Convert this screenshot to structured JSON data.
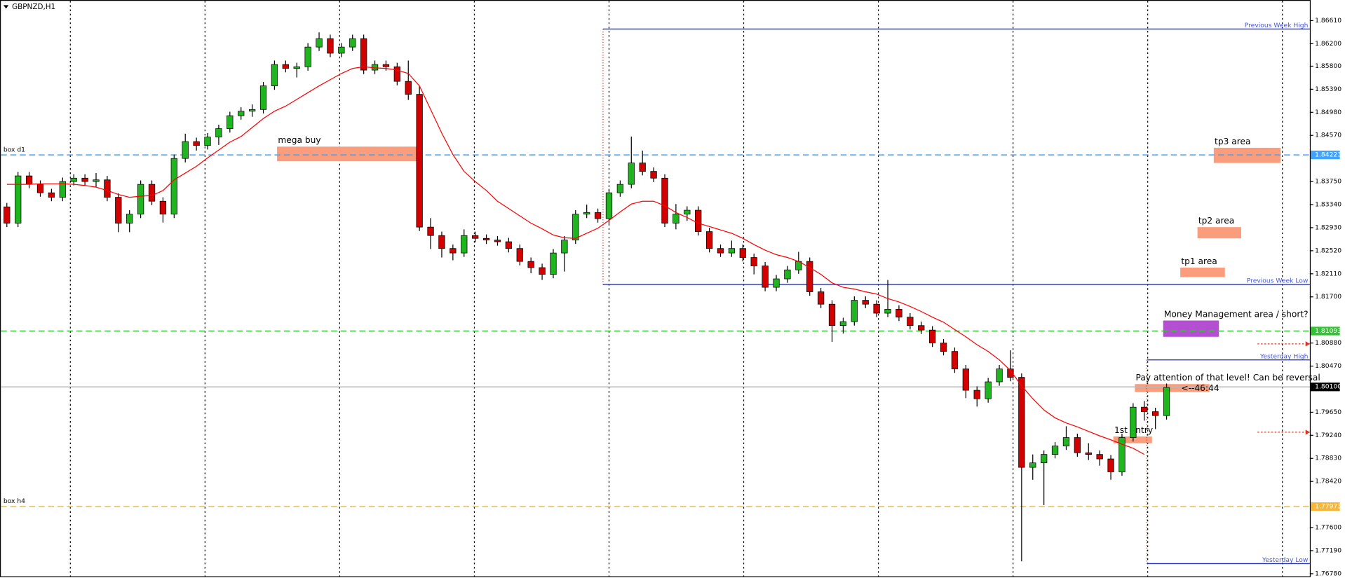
{
  "chart_data": {
    "type": "candlestick",
    "title": "GBPNZD,H1",
    "up_color": "#1fb51f",
    "down_color": "#d40000",
    "open": [
      1.833,
      1.8301,
      1.8385,
      1.837,
      1.8355,
      1.8347,
      1.8375,
      1.8381,
      1.8375,
      1.8378,
      1.8347,
      1.8301,
      1.8317,
      1.837,
      1.834,
      1.8317,
      1.8416,
      1.8446,
      1.8439,
      1.8454,
      1.8469,
      1.8492,
      1.85,
      1.8503,
      1.8545,
      1.8583,
      1.8576,
      1.8579,
      1.8614,
      1.8629,
      1.8603,
      1.8614,
      1.8629,
      1.8573,
      1.8583,
      1.8579,
      1.8553,
      1.853,
      1.8294,
      1.8279,
      1.8256,
      1.8248,
      1.8279,
      1.8274,
      1.8271,
      1.8268,
      1.8256,
      1.8233,
      1.8222,
      1.821,
      1.8248,
      1.8271,
      1.8317,
      1.832,
      1.8309,
      1.8355,
      1.837,
      1.8408,
      1.8393,
      1.8381,
      1.8301,
      1.8317,
      1.8324,
      1.8286,
      1.8256,
      1.8248,
      1.8256,
      1.824,
      1.8225,
      1.8187,
      1.8202,
      1.8218,
      1.8233,
      1.8179,
      1.8157,
      1.8119,
      1.8126,
      1.8164,
      1.8157,
      1.8141,
      1.8148,
      1.8134,
      1.8119,
      1.8111,
      1.8088,
      1.8073,
      1.8042,
      1.8004,
      1.7989,
      1.8019,
      1.8042,
      1.8027,
      1.7867,
      1.7875,
      1.789,
      1.7905,
      1.792,
      1.7893,
      1.789,
      1.7882,
      1.7859,
      1.792,
      1.7974,
      1.7966,
      1.7959
    ],
    "high": [
      1.8337,
      1.8392,
      1.8392,
      1.8377,
      1.8362,
      1.8382,
      1.8388,
      1.8388,
      1.839,
      1.8385,
      1.8354,
      1.8324,
      1.8377,
      1.8377,
      1.8347,
      1.8423,
      1.846,
      1.8453,
      1.8461,
      1.8476,
      1.8499,
      1.8507,
      1.8512,
      1.8552,
      1.859,
      1.859,
      1.8586,
      1.8621,
      1.864,
      1.8636,
      1.8621,
      1.8636,
      1.8636,
      1.859,
      1.859,
      1.8586,
      1.859,
      1.8545,
      1.831,
      1.8286,
      1.8263,
      1.829,
      1.8286,
      1.8281,
      1.8278,
      1.8275,
      1.8263,
      1.824,
      1.8229,
      1.8255,
      1.8278,
      1.8324,
      1.8334,
      1.8327,
      1.8362,
      1.8377,
      1.8455,
      1.843,
      1.84,
      1.8388,
      1.8335,
      1.8331,
      1.8331,
      1.8293,
      1.8263,
      1.827,
      1.8263,
      1.8247,
      1.8232,
      1.8209,
      1.8225,
      1.825,
      1.824,
      1.8186,
      1.8164,
      1.8133,
      1.8171,
      1.8171,
      1.8164,
      1.82,
      1.8155,
      1.8141,
      1.8126,
      1.8118,
      1.8095,
      1.808,
      1.8049,
      1.8011,
      1.8026,
      1.8049,
      1.8075,
      1.8034,
      1.789,
      1.7897,
      1.7912,
      1.794,
      1.7927,
      1.791,
      1.7897,
      1.7889,
      1.7927,
      1.7981,
      1.7985,
      1.7973,
      1.8016
    ],
    "low": [
      1.8294,
      1.8294,
      1.8363,
      1.8348,
      1.834,
      1.834,
      1.8368,
      1.8368,
      1.8365,
      1.834,
      1.8285,
      1.8285,
      1.831,
      1.8333,
      1.8302,
      1.831,
      1.8409,
      1.843,
      1.8432,
      1.844,
      1.8462,
      1.8485,
      1.849,
      1.8496,
      1.8538,
      1.8569,
      1.856,
      1.8572,
      1.8607,
      1.8596,
      1.8596,
      1.8607,
      1.8566,
      1.8566,
      1.8572,
      1.8546,
      1.852,
      1.8287,
      1.8255,
      1.824,
      1.8235,
      1.8241,
      1.8267,
      1.8264,
      1.8261,
      1.8249,
      1.8226,
      1.8212,
      1.82,
      1.8203,
      1.8215,
      1.8264,
      1.831,
      1.8302,
      1.83,
      1.8348,
      1.8363,
      1.8386,
      1.8374,
      1.8294,
      1.829,
      1.8305,
      1.8279,
      1.8249,
      1.8241,
      1.8241,
      1.8233,
      1.821,
      1.818,
      1.818,
      1.8195,
      1.8211,
      1.8172,
      1.815,
      1.809,
      1.8105,
      1.8119,
      1.815,
      1.8134,
      1.8134,
      1.8127,
      1.8112,
      1.8104,
      1.8081,
      1.8066,
      1.8035,
      1.799,
      1.7975,
      1.7982,
      1.8012,
      1.802,
      1.77,
      1.7845,
      1.78,
      1.7883,
      1.7898,
      1.7886,
      1.788,
      1.787,
      1.7845,
      1.7852,
      1.7913,
      1.795,
      1.7935,
      1.7952
    ],
    "close": [
      1.8301,
      1.8385,
      1.837,
      1.8355,
      1.8347,
      1.8375,
      1.8381,
      1.8375,
      1.8378,
      1.8347,
      1.8301,
      1.8317,
      1.837,
      1.834,
      1.8317,
      1.8416,
      1.8446,
      1.8439,
      1.8454,
      1.8469,
      1.8492,
      1.85,
      1.8503,
      1.8545,
      1.8583,
      1.8576,
      1.8579,
      1.8614,
      1.8629,
      1.8603,
      1.8614,
      1.8629,
      1.8573,
      1.8583,
      1.8579,
      1.8553,
      1.853,
      1.8294,
      1.8279,
      1.8256,
      1.8248,
      1.8279,
      1.8274,
      1.8271,
      1.8268,
      1.8256,
      1.8233,
      1.8222,
      1.821,
      1.8248,
      1.8271,
      1.8317,
      1.832,
      1.8309,
      1.8355,
      1.837,
      1.8408,
      1.8393,
      1.8381,
      1.8301,
      1.8317,
      1.8324,
      1.8286,
      1.8256,
      1.8248,
      1.8256,
      1.824,
      1.8225,
      1.8187,
      1.8202,
      1.8218,
      1.8233,
      1.8179,
      1.8157,
      1.8119,
      1.8126,
      1.8164,
      1.8157,
      1.8141,
      1.8148,
      1.8134,
      1.8119,
      1.8111,
      1.8088,
      1.8073,
      1.8042,
      1.8004,
      1.7989,
      1.8019,
      1.8042,
      1.8027,
      1.7867,
      1.7875,
      1.789,
      1.7905,
      1.792,
      1.7893,
      1.789,
      1.7882,
      1.7859,
      1.792,
      1.7974,
      1.7966,
      1.7959,
      1.8009
    ],
    "ma": {
      "color": "#ff0000",
      "values": [
        1.837,
        1.837,
        1.837,
        1.8371,
        1.8371,
        1.8371,
        1.837,
        1.8368,
        1.8365,
        1.8359,
        1.8352,
        1.8347,
        1.8349,
        1.835,
        1.8359,
        1.8378,
        1.839,
        1.8402,
        1.8417,
        1.8431,
        1.8445,
        1.8455,
        1.8471,
        1.8487,
        1.85,
        1.8509,
        1.8521,
        1.8533,
        1.8545,
        1.8556,
        1.8567,
        1.8576,
        1.8579,
        1.8577,
        1.8576,
        1.8573,
        1.8567,
        1.8545,
        1.8503,
        1.8461,
        1.8423,
        1.8393,
        1.8375,
        1.8359,
        1.834,
        1.8327,
        1.8314,
        1.8301,
        1.8291,
        1.828,
        1.8275,
        1.8274,
        1.8283,
        1.8292,
        1.8306,
        1.8321,
        1.8335,
        1.834,
        1.834,
        1.8332,
        1.832,
        1.8311,
        1.8301,
        1.8295,
        1.8289,
        1.8283,
        1.8274,
        1.8263,
        1.8253,
        1.8245,
        1.824,
        1.8233,
        1.8222,
        1.821,
        1.8195,
        1.8187,
        1.8184,
        1.8179,
        1.8175,
        1.8167,
        1.8161,
        1.8153,
        1.8144,
        1.8134,
        1.8125,
        1.8112,
        1.8099,
        1.8085,
        1.8073,
        1.8058,
        1.8039,
        1.8012,
        1.7989,
        1.7969,
        1.7955,
        1.7946,
        1.7939,
        1.7931,
        1.7923,
        1.7916,
        1.7908,
        1.7901,
        1.789,
        null,
        null
      ]
    },
    "ylim": [
      1.76704,
      1.86976
    ],
    "yticks": [
      {
        "value": 1.8661,
        "label": "1.86610"
      },
      {
        "value": 1.862,
        "label": "1.86200"
      },
      {
        "value": 1.858,
        "label": "1.85800"
      },
      {
        "value": 1.8539,
        "label": "1.85390"
      },
      {
        "value": 1.8498,
        "label": "1.84980"
      },
      {
        "value": 1.8457,
        "label": "1.84570"
      },
      {
        "value": 1.8375,
        "label": "1.83750"
      },
      {
        "value": 1.8334,
        "label": "1.83340"
      },
      {
        "value": 1.8293,
        "label": "1.82930"
      },
      {
        "value": 1.8252,
        "label": "1.82520"
      },
      {
        "value": 1.8211,
        "label": "1.82110"
      },
      {
        "value": 1.817,
        "label": "1.81700"
      },
      {
        "value": 1.8088,
        "label": "1.80880"
      },
      {
        "value": 1.8047,
        "label": "1.80470"
      },
      {
        "value": 1.7965,
        "label": "1.79650"
      },
      {
        "value": 1.7924,
        "label": "1.79240"
      },
      {
        "value": 1.7883,
        "label": "1.78830"
      },
      {
        "value": 1.7842,
        "label": "1.78420"
      },
      {
        "value": 1.776,
        "label": "1.77600"
      },
      {
        "value": 1.7719,
        "label": "1.77190"
      },
      {
        "value": 1.7678,
        "label": "1.76780"
      }
    ],
    "grid": true,
    "levels": [
      {
        "label": "box d1",
        "value": 1.84223,
        "value_label": "1.84223",
        "color": "#3fa2ff"
      },
      {
        "value": 1.81093,
        "value_label": "1.81093",
        "color": "#33c233"
      },
      {
        "value": 1.801,
        "value_label": "1.80100",
        "color": "#b8b8b8"
      },
      {
        "label": "box h4",
        "value": 1.77973,
        "value_label": "1.77973",
        "color": "#f4b73c"
      }
    ],
    "ranges": [
      {
        "label": "Previous Week High",
        "value": 1.8646
      },
      {
        "label": "Previous Week Low",
        "value": 1.8192
      },
      {
        "label": "Yesterday High",
        "value": 1.8058
      },
      {
        "label": "Yesterday Low",
        "value": 1.7696
      }
    ],
    "zones": [
      {
        "label": "mega buy",
        "top": 1.8437,
        "bottom": 1.8411,
        "color": "#fa9d7c"
      },
      {
        "label": "tp3 area",
        "top": 1.8435,
        "bottom": 1.8408,
        "color": "#fa9d7c"
      },
      {
        "label": "tp2 area",
        "top": 1.8294,
        "bottom": 1.8274,
        "color": "#fa9d7c"
      },
      {
        "label": "tp1 area",
        "top": 1.8222,
        "bottom": 1.8205,
        "color": "#fa9d7c"
      },
      {
        "label": "Money Management area / short?",
        "top": 1.8128,
        "bottom": 1.8099,
        "color": "#b44fd2"
      },
      {
        "label": "Pay attention of that level! Can be reversal",
        "top": 1.8015,
        "bottom": 1.8001,
        "color": "#fa9d7c"
      },
      {
        "label": "1st entry",
        "top": 1.7922,
        "bottom": 1.791,
        "color": "#fa9d7c"
      }
    ],
    "annotations": [
      "<--46:44"
    ]
  }
}
